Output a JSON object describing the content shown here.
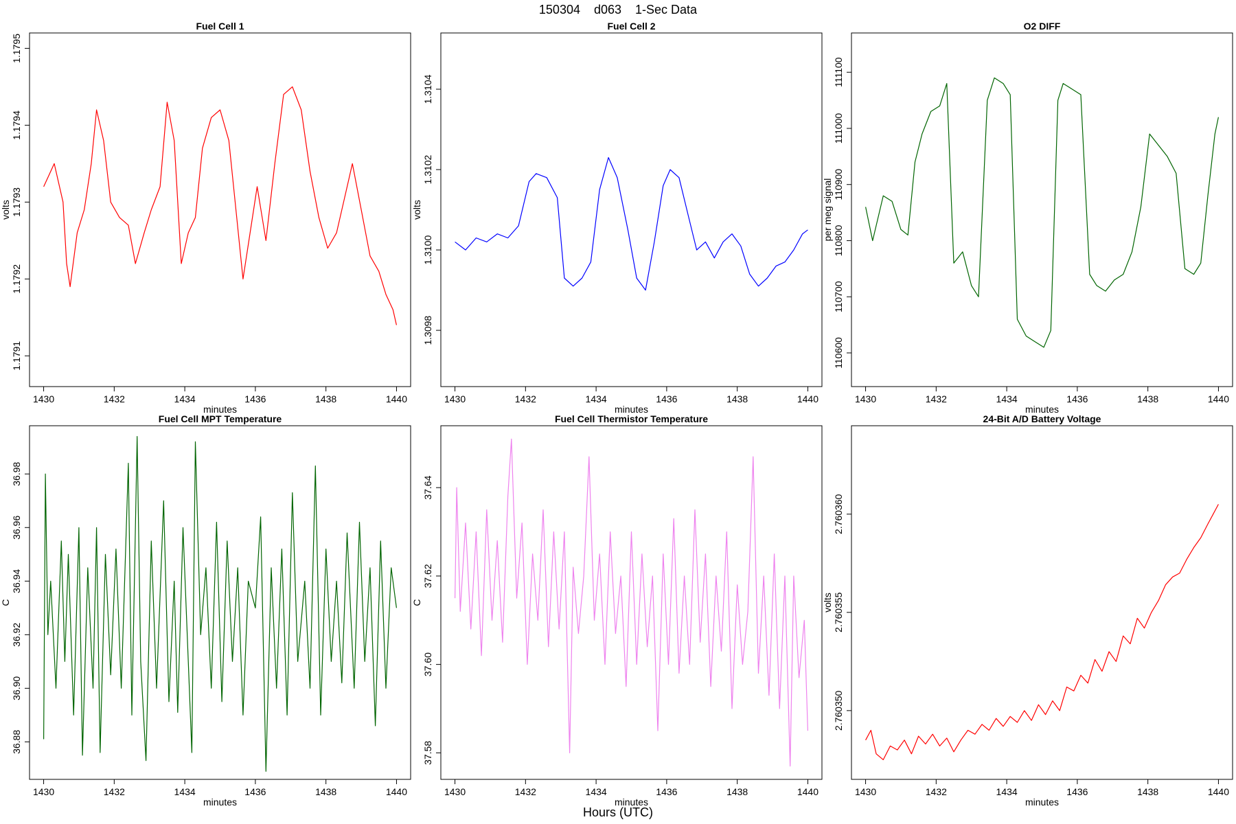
{
  "figure": {
    "title": "150304    d063    1-Sec Data",
    "footer": "Hours (UTC)"
  },
  "chart_data": [
    {
      "type": "line",
      "title": "Fuel Cell 1",
      "xlabel": "minutes",
      "ylabel": "volts",
      "color": "#ff0000",
      "xlim": [
        1429.6,
        1440.4
      ],
      "ylim": [
        1.17906,
        1.17952
      ],
      "xticks": [
        1430,
        1432,
        1434,
        1436,
        1438,
        1440
      ],
      "yticks": [
        1.1791,
        1.1792,
        1.1793,
        1.1794,
        1.1795
      ],
      "ytick_labels": [
        "1.1791",
        "1.1792",
        "1.1793",
        "1.1794",
        "1.1795"
      ],
      "grid": false,
      "series": [
        {
          "x": [
            1430,
            1430.3,
            1430.55,
            1430.65,
            1430.75,
            1430.95,
            1431.15,
            1431.35,
            1431.5,
            1431.7,
            1431.9,
            1432.15,
            1432.4,
            1432.6,
            1432.85,
            1433.05,
            1433.3,
            1433.5,
            1433.7,
            1433.9,
            1434.1,
            1434.3,
            1434.5,
            1434.75,
            1435,
            1435.25,
            1435.45,
            1435.65,
            1435.85,
            1436.05,
            1436.3,
            1436.55,
            1436.8,
            1437.05,
            1437.3,
            1437.55,
            1437.8,
            1438.05,
            1438.3,
            1438.5,
            1438.75,
            1439.0,
            1439.25,
            1439.5,
            1439.7,
            1439.9,
            1440
          ],
          "y": [
            1.17932,
            1.17935,
            1.1793,
            1.17922,
            1.17919,
            1.17926,
            1.17929,
            1.17935,
            1.17942,
            1.17938,
            1.1793,
            1.17928,
            1.17927,
            1.17922,
            1.17926,
            1.17929,
            1.17932,
            1.17943,
            1.17938,
            1.17922,
            1.17926,
            1.17928,
            1.17937,
            1.17941,
            1.17942,
            1.17938,
            1.17929,
            1.1792,
            1.17926,
            1.17932,
            1.17925,
            1.17935,
            1.17944,
            1.17945,
            1.17942,
            1.17934,
            1.17928,
            1.17924,
            1.17926,
            1.1793,
            1.17935,
            1.17929,
            1.17923,
            1.17921,
            1.17918,
            1.17916,
            1.17914
          ]
        }
      ]
    },
    {
      "type": "line",
      "title": "Fuel Cell 2",
      "xlabel": "minutes",
      "ylabel": "volts",
      "color": "#0000ff",
      "xlim": [
        1429.6,
        1440.4
      ],
      "ylim": [
        1.30966,
        1.31054
      ],
      "xticks": [
        1430,
        1432,
        1434,
        1436,
        1438,
        1440
      ],
      "yticks": [
        1.3098,
        1.31,
        1.3102,
        1.3104
      ],
      "ytick_labels": [
        "1.3098",
        "1.3100",
        "1.3102",
        "1.3104"
      ],
      "grid": false,
      "series": [
        {
          "x": [
            1430,
            1430.3,
            1430.6,
            1430.9,
            1431.2,
            1431.5,
            1431.8,
            1432.1,
            1432.3,
            1432.6,
            1432.9,
            1433.1,
            1433.35,
            1433.6,
            1433.85,
            1434.1,
            1434.35,
            1434.6,
            1434.9,
            1435.15,
            1435.4,
            1435.65,
            1435.9,
            1436.1,
            1436.35,
            1436.6,
            1436.85,
            1437.1,
            1437.35,
            1437.6,
            1437.85,
            1438.1,
            1438.35,
            1438.6,
            1438.85,
            1439.1,
            1439.35,
            1439.6,
            1439.85,
            1440
          ],
          "y": [
            1.31002,
            1.31,
            1.31003,
            1.31002,
            1.31004,
            1.31003,
            1.31006,
            1.31017,
            1.31019,
            1.31018,
            1.31013,
            1.30993,
            1.30991,
            1.30993,
            1.30997,
            1.31015,
            1.31023,
            1.31018,
            1.31005,
            1.30993,
            1.3099,
            1.31002,
            1.31016,
            1.3102,
            1.31018,
            1.31009,
            1.31,
            1.31002,
            1.30998,
            1.31002,
            1.31004,
            1.31001,
            1.30994,
            1.30991,
            1.30993,
            1.30996,
            1.30997,
            1.31,
            1.31004,
            1.31005
          ]
        }
      ]
    },
    {
      "type": "line",
      "title": "O2 DIFF",
      "xlabel": "minutes",
      "ylabel": "per meg signal",
      "color": "#006400",
      "xlim": [
        1429.6,
        1440.4
      ],
      "ylim": [
        110540,
        111170
      ],
      "xticks": [
        1430,
        1432,
        1434,
        1436,
        1438,
        1440
      ],
      "yticks": [
        110600,
        110700,
        110800,
        110900,
        111000,
        111100
      ],
      "ytick_labels": [
        "110600",
        "110700",
        "110800",
        "110900",
        "111000",
        "111100"
      ],
      "grid": false,
      "series": [
        {
          "x": [
            1430,
            1430.2,
            1430.5,
            1430.75,
            1431.0,
            1431.2,
            1431.4,
            1431.6,
            1431.85,
            1432.1,
            1432.3,
            1432.5,
            1432.75,
            1433.0,
            1433.2,
            1433.45,
            1433.65,
            1433.9,
            1434.1,
            1434.3,
            1434.55,
            1434.8,
            1435.05,
            1435.25,
            1435.45,
            1435.6,
            1435.85,
            1436.1,
            1436.35,
            1436.55,
            1436.8,
            1437.05,
            1437.3,
            1437.55,
            1437.8,
            1438.05,
            1438.3,
            1438.55,
            1438.8,
            1439.05,
            1439.3,
            1439.5,
            1439.7,
            1439.9,
            1440
          ],
          "y": [
            110860,
            110800,
            110880,
            110870,
            110820,
            110810,
            110940,
            110990,
            111030,
            111040,
            111080,
            110760,
            110780,
            110720,
            110700,
            111050,
            111090,
            111080,
            111060,
            110660,
            110630,
            110620,
            110610,
            110640,
            111050,
            111080,
            111070,
            111060,
            110740,
            110720,
            110710,
            110730,
            110740,
            110780,
            110860,
            110990,
            110970,
            110950,
            110920,
            110750,
            110740,
            110760,
            110880,
            110990,
            111020
          ]
        }
      ]
    },
    {
      "type": "line",
      "title": "Fuel Cell MPT Temperature",
      "xlabel": "minutes",
      "ylabel": "C",
      "color": "#006400",
      "xlim": [
        1429.6,
        1440.4
      ],
      "ylim": [
        36.866,
        36.998
      ],
      "xticks": [
        1430,
        1432,
        1434,
        1436,
        1438,
        1440
      ],
      "yticks": [
        36.88,
        36.9,
        36.92,
        36.94,
        36.96,
        36.98
      ],
      "ytick_labels": [
        "36.88",
        "36.90",
        "36.92",
        "36.94",
        "36.96",
        "36.98"
      ],
      "grid": false,
      "series": [
        {
          "x": [
            1430,
            1430.05,
            1430.12,
            1430.2,
            1430.35,
            1430.5,
            1430.6,
            1430.7,
            1430.85,
            1431.0,
            1431.1,
            1431.25,
            1431.4,
            1431.5,
            1431.6,
            1431.75,
            1431.9,
            1432.05,
            1432.2,
            1432.4,
            1432.5,
            1432.65,
            1432.75,
            1432.9,
            1433.05,
            1433.2,
            1433.4,
            1433.55,
            1433.7,
            1433.8,
            1433.95,
            1434.1,
            1434.2,
            1434.3,
            1434.45,
            1434.6,
            1434.75,
            1434.9,
            1435.05,
            1435.2,
            1435.35,
            1435.5,
            1435.65,
            1435.8,
            1436.0,
            1436.15,
            1436.3,
            1436.45,
            1436.6,
            1436.75,
            1436.9,
            1437.05,
            1437.2,
            1437.4,
            1437.55,
            1437.7,
            1437.85,
            1438.0,
            1438.15,
            1438.3,
            1438.45,
            1438.6,
            1438.8,
            1438.95,
            1439.1,
            1439.25,
            1439.4,
            1439.55,
            1439.7,
            1439.85,
            1440
          ],
          "y": [
            36.881,
            36.98,
            36.92,
            36.94,
            36.9,
            36.955,
            36.91,
            36.95,
            36.89,
            36.96,
            36.875,
            36.945,
            36.9,
            36.96,
            36.876,
            36.95,
            36.905,
            36.952,
            36.9,
            36.984,
            36.89,
            36.994,
            36.91,
            36.873,
            36.955,
            36.9,
            36.97,
            36.895,
            36.94,
            36.891,
            36.96,
            36.91,
            36.876,
            36.992,
            36.92,
            36.945,
            36.9,
            36.962,
            36.895,
            36.955,
            36.91,
            36.945,
            36.89,
            36.94,
            36.93,
            36.964,
            36.869,
            36.945,
            36.9,
            36.952,
            36.89,
            36.973,
            36.91,
            36.94,
            36.9,
            36.983,
            36.89,
            36.952,
            36.91,
            36.94,
            36.902,
            36.958,
            36.9,
            36.962,
            36.91,
            36.945,
            36.886,
            36.955,
            36.9,
            36.945,
            36.93
          ]
        }
      ]
    },
    {
      "type": "line",
      "title": "Fuel Cell Thermistor Temperature",
      "xlabel": "minutes",
      "ylabel": "C",
      "color": "#ee82ee",
      "xlim": [
        1429.6,
        1440.4
      ],
      "ylim": [
        37.574,
        37.654
      ],
      "xticks": [
        1430,
        1432,
        1434,
        1436,
        1438,
        1440
      ],
      "yticks": [
        37.58,
        37.6,
        37.62,
        37.64
      ],
      "ytick_labels": [
        "37.58",
        "37.60",
        "37.62",
        "37.64"
      ],
      "grid": false,
      "series": [
        {
          "x": [
            1430,
            1430.05,
            1430.15,
            1430.3,
            1430.45,
            1430.6,
            1430.75,
            1430.9,
            1431.05,
            1431.2,
            1431.35,
            1431.5,
            1431.6,
            1431.75,
            1431.9,
            1432.05,
            1432.2,
            1432.35,
            1432.5,
            1432.65,
            1432.8,
            1432.95,
            1433.1,
            1433.25,
            1433.35,
            1433.5,
            1433.65,
            1433.8,
            1433.95,
            1434.1,
            1434.25,
            1434.4,
            1434.55,
            1434.7,
            1434.85,
            1435.0,
            1435.15,
            1435.3,
            1435.45,
            1435.6,
            1435.75,
            1435.9,
            1436.05,
            1436.2,
            1436.35,
            1436.5,
            1436.65,
            1436.8,
            1436.95,
            1437.1,
            1437.25,
            1437.4,
            1437.55,
            1437.7,
            1437.85,
            1438.0,
            1438.15,
            1438.3,
            1438.45,
            1438.6,
            1438.75,
            1438.9,
            1439.05,
            1439.2,
            1439.35,
            1439.5,
            1439.6,
            1439.75,
            1439.9,
            1440
          ],
          "y": [
            37.615,
            37.64,
            37.612,
            37.632,
            37.608,
            37.63,
            37.602,
            37.635,
            37.61,
            37.628,
            37.605,
            37.638,
            37.651,
            37.615,
            37.632,
            37.6,
            37.625,
            37.61,
            37.635,
            37.604,
            37.63,
            37.608,
            37.63,
            37.58,
            37.622,
            37.607,
            37.62,
            37.647,
            37.61,
            37.625,
            37.6,
            37.63,
            37.607,
            37.62,
            37.595,
            37.63,
            37.6,
            37.625,
            37.604,
            37.62,
            37.585,
            37.625,
            37.6,
            37.633,
            37.598,
            37.62,
            37.6,
            37.635,
            37.605,
            37.625,
            37.595,
            37.62,
            37.603,
            37.63,
            37.59,
            37.618,
            37.6,
            37.612,
            37.647,
            37.598,
            37.62,
            37.593,
            37.625,
            37.59,
            37.62,
            37.577,
            37.62,
            37.597,
            37.61,
            37.585
          ]
        }
      ]
    },
    {
      "type": "line",
      "title": "24-Bit A/D Battery Voltage",
      "xlabel": "minutes",
      "ylabel": "volts",
      "color": "#ff0000",
      "xlim": [
        1429.6,
        1440.4
      ],
      "ylim": [
        2.7603465,
        2.7603645
      ],
      "xticks": [
        1430,
        1432,
        1434,
        1436,
        1438,
        1440
      ],
      "yticks": [
        2.76035,
        2.760355,
        2.76036
      ],
      "ytick_labels": [
        "2.760350",
        "2.760355",
        "2.760360"
      ],
      "grid": false,
      "series": [
        {
          "x": [
            1430,
            1430.15,
            1430.3,
            1430.5,
            1430.7,
            1430.9,
            1431.1,
            1431.3,
            1431.5,
            1431.7,
            1431.9,
            1432.1,
            1432.3,
            1432.5,
            1432.7,
            1432.9,
            1433.1,
            1433.3,
            1433.5,
            1433.7,
            1433.9,
            1434.1,
            1434.3,
            1434.5,
            1434.7,
            1434.9,
            1435.1,
            1435.3,
            1435.5,
            1435.7,
            1435.9,
            1436.1,
            1436.3,
            1436.5,
            1436.7,
            1436.9,
            1437.1,
            1437.3,
            1437.5,
            1437.7,
            1437.9,
            1438.1,
            1438.3,
            1438.5,
            1438.7,
            1438.9,
            1439.1,
            1439.3,
            1439.5,
            1439.7,
            1439.85,
            1440
          ],
          "y": [
            2.7603485,
            2.760349,
            2.7603478,
            2.7603475,
            2.7603482,
            2.760348,
            2.7603485,
            2.7603478,
            2.7603487,
            2.7603483,
            2.7603488,
            2.7603482,
            2.7603486,
            2.7603479,
            2.7603485,
            2.760349,
            2.7603488,
            2.7603493,
            2.760349,
            2.7603496,
            2.7603492,
            2.7603497,
            2.7603494,
            2.76035,
            2.7603495,
            2.7603503,
            2.7603498,
            2.7603505,
            2.76035,
            2.7603512,
            2.760351,
            2.7603518,
            2.7603514,
            2.7603526,
            2.760352,
            2.760353,
            2.7603525,
            2.7603538,
            2.7603534,
            2.7603547,
            2.7603542,
            2.760355,
            2.7603556,
            2.7603564,
            2.7603568,
            2.760357,
            2.7603577,
            2.7603583,
            2.7603588,
            2.7603595,
            2.76036,
            2.7603605
          ]
        }
      ]
    }
  ]
}
